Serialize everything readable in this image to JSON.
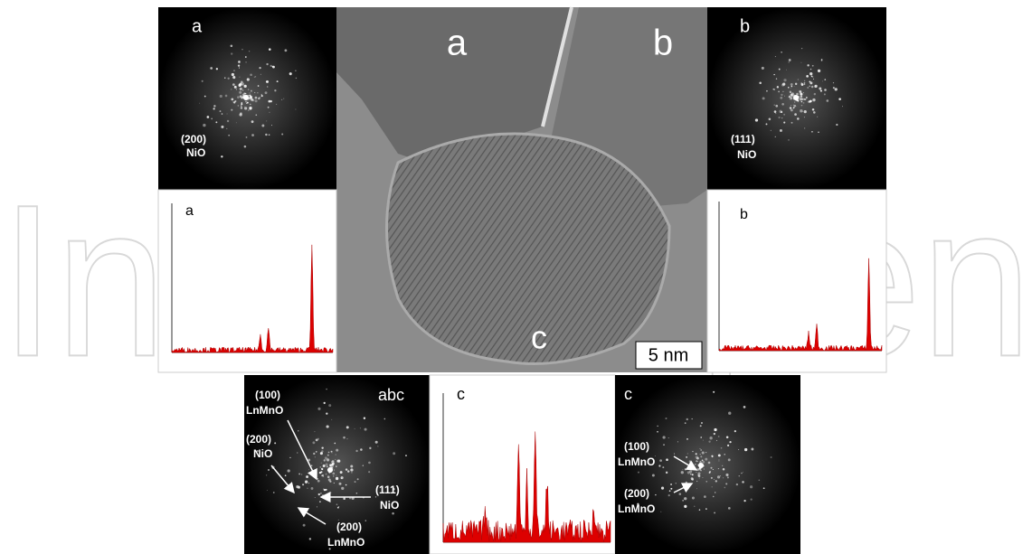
{
  "watermark": "IntechOpen",
  "tem": {
    "grain_a": "a",
    "grain_b": "b",
    "particle_c": "c",
    "scale_bar": "5 nm"
  },
  "fft_a": {
    "letter": "a",
    "spot": [
      "(200)",
      "NiO"
    ]
  },
  "eds_a": {
    "letter": "a"
  },
  "fft_b": {
    "letter": "b",
    "spot": [
      "(111)",
      "NiO"
    ]
  },
  "eds_b": {
    "letter": "b"
  },
  "fft_abc": {
    "letter": "abc",
    "spots": [
      [
        "(100)",
        "LnMnO"
      ],
      [
        "(200)",
        "NiO"
      ],
      [
        "(111)",
        "NiO"
      ],
      [
        "(200)",
        "LnMnO"
      ]
    ]
  },
  "eds_c": {
    "letter": "c"
  },
  "fft_c": {
    "letter": "c",
    "spots": [
      [
        "(100)",
        "LnMnO"
      ],
      [
        "(200)",
        "LnMnO"
      ]
    ]
  }
}
